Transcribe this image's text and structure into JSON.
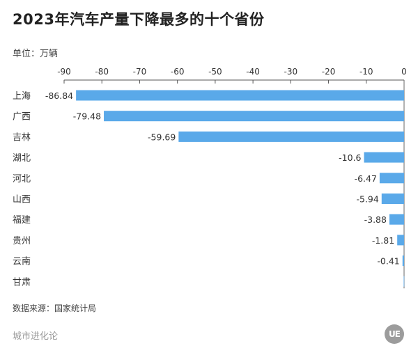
{
  "title": "2023年汽车产量下降最多的十个省份",
  "unit": "单位：万辆",
  "source": "数据来源：国家统计局",
  "watermark": "城市进化论",
  "logo_text": "UE",
  "chart_data": {
    "type": "bar",
    "orientation": "horizontal",
    "categories": [
      "上海",
      "广西",
      "吉林",
      "湖北",
      "河北",
      "山西",
      "福建",
      "贵州",
      "云南",
      "甘肃"
    ],
    "values": [
      -86.84,
      -79.48,
      -59.69,
      -10.6,
      -6.47,
      -5.94,
      -3.88,
      -1.81,
      -0.41,
      -0.1
    ],
    "value_labels": [
      "-86.84",
      "-79.48",
      "-59.69",
      "-10.6",
      "-6.47",
      "-5.94",
      "-3.88",
      "-1.81",
      "-0.41",
      ""
    ],
    "xlim": [
      -90,
      0
    ],
    "xticks": [
      -90,
      -80,
      -70,
      -60,
      -50,
      -40,
      -30,
      -20,
      -10,
      0
    ],
    "axis_position": "top",
    "bar_color": "#5aa9e9",
    "grid": false
  }
}
